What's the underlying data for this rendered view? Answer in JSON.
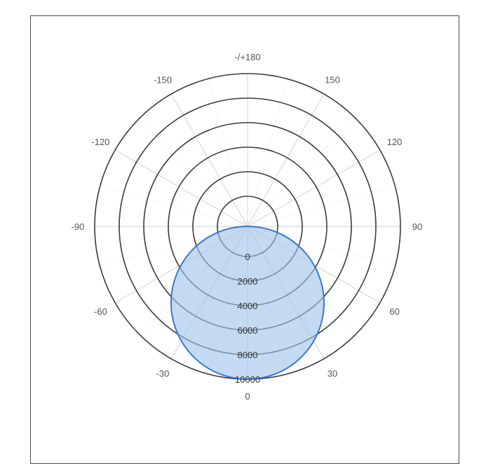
{
  "chart_data": {
    "type": "polar",
    "angle_direction": "angle 0 at bottom, positive angles to the right (clockwise toward 90 at right)",
    "angle_ticks": [
      0,
      30,
      60,
      90,
      120,
      150,
      180,
      -150,
      -120,
      -90,
      -60,
      -30
    ],
    "angle_tick_labels": [
      "0",
      "30",
      "60",
      "90",
      "120",
      "150",
      "-/+180",
      "-150",
      "-120",
      "-90",
      "-60",
      "-30"
    ],
    "radial_ticks": [
      0,
      2000,
      4000,
      6000,
      8000,
      10000
    ],
    "radial_tick_labels": [
      "0",
      "2000",
      "4000",
      "6000",
      "8000",
      "10000"
    ],
    "radial_range": [
      0,
      10000
    ],
    "radial_reversed": true,
    "grid": true,
    "series": [
      {
        "shape": "circle through origin",
        "max_value": 10000,
        "max_angle": 0,
        "fill_color": "#a8c6ea",
        "stroke_color": "#3a78c8"
      }
    ]
  }
}
